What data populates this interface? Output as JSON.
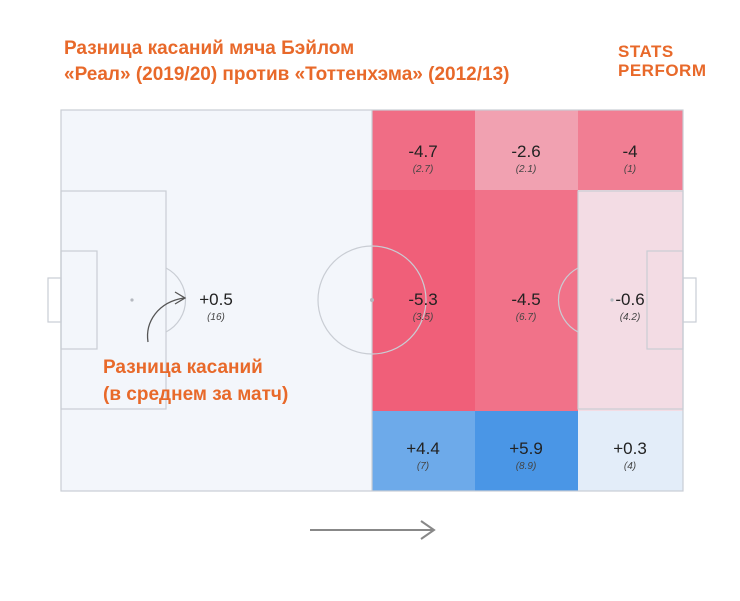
{
  "title": {
    "line1": "Разница касаний мяча Бэйлом",
    "line2": "«Реал» (2019/20) против «Тоттенхэма» (2012/13)"
  },
  "logo": {
    "line1": "STATS",
    "line2": "PERFORM"
  },
  "annotation": {
    "line1": "Разница касаний",
    "line2": "(в среднем за матч)"
  },
  "colors": {
    "title": "#e8692a",
    "pitch": "#f3f6fb",
    "negative": "#f0526d",
    "positive": "#4a96e6"
  },
  "chart_data": {
    "type": "heatmap",
    "title": "Разница касаний мяча Бэйлом «Реал» (2019/20) против «Тоттенхэма» (2012/13)",
    "zones": [
      {
        "zone": "own-half",
        "value": "+0.5",
        "note": "(16)",
        "diff": 0.5
      },
      {
        "zone": "mid-top",
        "value": "-4.7",
        "note": "(2.7)",
        "diff": -4.7
      },
      {
        "zone": "right-top",
        "value": "-2.6",
        "note": "(2.1)",
        "diff": -2.6
      },
      {
        "zone": "box-top",
        "value": "-4",
        "note": "(1)",
        "diff": -4
      },
      {
        "zone": "mid-center",
        "value": "-5.3",
        "note": "(3.5)",
        "diff": -5.3
      },
      {
        "zone": "right-center",
        "value": "-4.5",
        "note": "(6.7)",
        "diff": -4.5
      },
      {
        "zone": "box-center",
        "value": "-0.6",
        "note": "(4.2)",
        "diff": -0.6
      },
      {
        "zone": "mid-bottom",
        "value": "+4.4",
        "note": "(7)",
        "diff": 4.4
      },
      {
        "zone": "right-bottom",
        "value": "+5.9",
        "note": "(8.9)",
        "diff": 5.9
      },
      {
        "zone": "box-bottom",
        "value": "+0.3",
        "note": "(4)",
        "diff": 0.3
      }
    ]
  }
}
